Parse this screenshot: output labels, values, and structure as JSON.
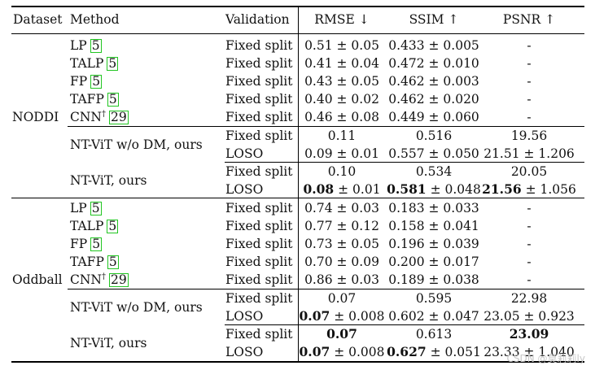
{
  "headers": {
    "dataset": "Dataset",
    "method": "Method",
    "validation": "Validation",
    "rmse": "RMSE ↓",
    "ssim": "SSIM ↑",
    "psnr": "PSNR ↑"
  },
  "groups": [
    {
      "dataset": "NODDI",
      "rows": [
        {
          "method": "LP",
          "ref": "5",
          "validation": "Fixed split",
          "rmse": "0.51 ± 0.05",
          "ssim": "0.433 ± 0.005",
          "psnr": "-"
        },
        {
          "method": "TALP",
          "ref": "5",
          "validation": "Fixed split",
          "rmse": "0.41 ± 0.04",
          "ssim": "0.472 ± 0.010",
          "psnr": "-"
        },
        {
          "method": "FP",
          "ref": "5",
          "validation": "Fixed split",
          "rmse": "0.43 ± 0.05",
          "ssim": "0.462 ± 0.003",
          "psnr": "-"
        },
        {
          "method": "TAFP",
          "ref": "5",
          "validation": "Fixed split",
          "rmse": "0.40 ± 0.02",
          "ssim": "0.462 ± 0.020",
          "psnr": "-"
        },
        {
          "method": "CNN",
          "sup": "†",
          "ref": "29",
          "validation": "Fixed split",
          "rmse": "0.46 ± 0.08",
          "ssim": "0.449 ± 0.060",
          "psnr": "-"
        },
        {
          "method": "NT-ViT w/o DM, ours",
          "validation": "Fixed split",
          "rmse": "0.11",
          "ssim": "0.516",
          "psnr": "19.56"
        },
        {
          "validation": "LOSO",
          "rmse": "0.09 ± 0.01",
          "ssim": "0.557 ± 0.050",
          "psnr": "21.51 ± 1.206"
        },
        {
          "method": "NT-ViT, ours",
          "validation": "Fixed split",
          "rmse": "0.10",
          "ssim": "0.534",
          "psnr": "20.05"
        },
        {
          "validation": "LOSO",
          "rmse_b": "0.08",
          "rmse": " ± 0.01",
          "ssim_b": "0.581",
          "ssim": " ± 0.048",
          "psnr_b": "21.56",
          "psnr": " ± 1.056"
        }
      ]
    },
    {
      "dataset": "Oddball",
      "rows": [
        {
          "method": "LP",
          "ref": "5",
          "validation": "Fixed split",
          "rmse": "0.74 ± 0.03",
          "ssim": "0.183 ± 0.033",
          "psnr": "-"
        },
        {
          "method": "TALP",
          "ref": "5",
          "validation": "Fixed split",
          "rmse": "0.77 ± 0.12",
          "ssim": "0.158 ± 0.041",
          "psnr": "-"
        },
        {
          "method": "FP",
          "ref": "5",
          "validation": "Fixed split",
          "rmse": "0.73 ± 0.05",
          "ssim": "0.196 ± 0.039",
          "psnr": "-"
        },
        {
          "method": "TAFP",
          "ref": "5",
          "validation": "Fixed split",
          "rmse": "0.70 ± 0.09",
          "ssim": "0.200 ± 0.017",
          "psnr": "-"
        },
        {
          "method": "CNN",
          "sup": "†",
          "ref": "29",
          "validation": "Fixed split",
          "rmse": "0.86 ± 0.03",
          "ssim": "0.189 ± 0.038",
          "psnr": "-"
        },
        {
          "method": "NT-ViT w/o DM, ours",
          "validation": "Fixed split",
          "rmse": "0.07",
          "ssim": "0.595",
          "psnr": "22.98"
        },
        {
          "validation": "LOSO",
          "rmse_b": "0.07",
          "rmse": " ± 0.008",
          "ssim": "0.602 ± 0.047",
          "psnr": "23.05 ± 0.923"
        },
        {
          "method": "NT-ViT, ours",
          "validation": "Fixed split",
          "rmse_b": "0.07",
          "rmse": "",
          "ssim": "0.613",
          "psnr_b": "23.09",
          "psnr": ""
        },
        {
          "validation": "LOSO",
          "rmse_b": "0.07",
          "rmse": " ± 0.008",
          "ssim_b": "0.627",
          "ssim": " ± 0.051",
          "psnr": "23.33 ± 1.040"
        }
      ]
    }
  ],
  "watermark": "CSDN @莫莉莉ly"
}
